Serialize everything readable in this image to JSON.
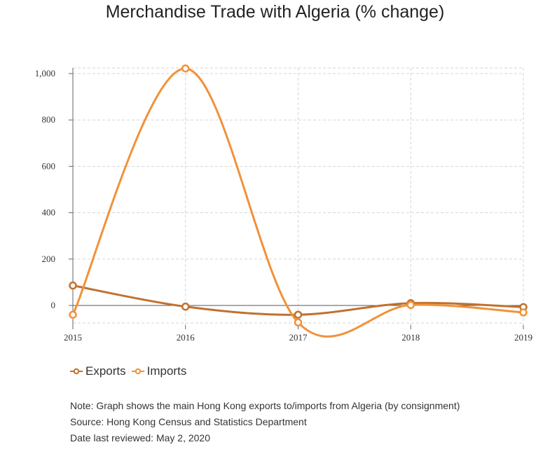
{
  "chart_data": {
    "type": "line",
    "title": "Merchandise Trade with Algeria (% change)",
    "x": [
      "2015",
      "2016",
      "2017",
      "2018",
      "2019"
    ],
    "series": [
      {
        "name": "Exports",
        "color": "#c0712f",
        "values": [
          86,
          -5,
          -40,
          10,
          -7
        ]
      },
      {
        "name": "Imports",
        "color": "#f0923a",
        "values": [
          -40,
          1022,
          -73,
          2,
          -30
        ]
      }
    ],
    "yticks": [
      0,
      200,
      400,
      600,
      800,
      1000
    ],
    "ytick_labels": [
      "0",
      "200",
      "400",
      "600",
      "800",
      "1,000"
    ],
    "ylim": [
      -80,
      1030
    ],
    "grid": true,
    "legend_position": "bottom-left"
  },
  "notes": {
    "note": "Note: Graph shows the main Hong Kong exports to/imports from Algeria (by consignment)",
    "source": "Source: Hong Kong Census and Statistics Department",
    "reviewed": "Date last reviewed: May 2, 2020"
  }
}
